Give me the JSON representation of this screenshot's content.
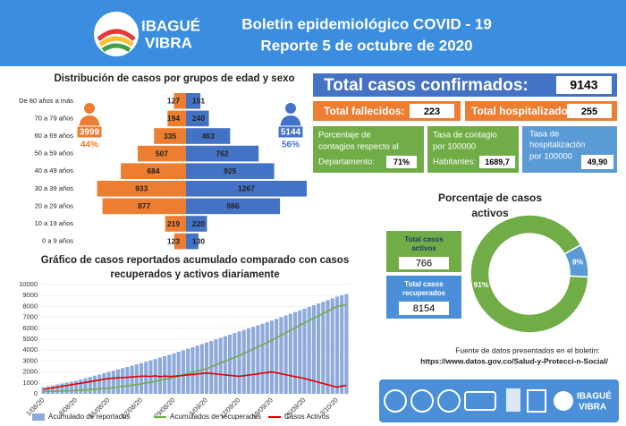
{
  "header": {
    "logo": [
      "IBAGUÉ",
      "VIBRA"
    ],
    "title": "Boletín epidemiológico COVID - 19",
    "subtitle": "Reporte 5 de octubre de 2020"
  },
  "kpis": {
    "confirmed": {
      "label": "Total casos confirmados:",
      "value": 9143
    },
    "deaths": {
      "label": "Total fallecidos:",
      "value": 223
    },
    "hospitalized": {
      "label": "Total hospitalizados:",
      "value": 255
    },
    "department_share": {
      "label": [
        "Porcentaje de",
        "contagios respecto al",
        "Departamento:"
      ],
      "value": "71%"
    },
    "infection_rate": {
      "label": [
        "Tasa de contagio",
        "por 100000",
        "Habitantes:"
      ],
      "value": "1689,7"
    },
    "hospitalization_rate": {
      "label": [
        "Tasa de",
        "hospitalización",
        "por 100000"
      ],
      "value": "49,90"
    },
    "active": {
      "label": [
        "Total casos",
        "activos"
      ],
      "value": 766
    },
    "recovered": {
      "label": [
        "Total casos",
        "recuperados"
      ],
      "value": 8154
    }
  },
  "source": {
    "text": "Fuente de datos presentados en el boletín:",
    "url": "https://www.datos.gov.co/Salud-y-Protecci-n-Social/"
  },
  "chart_data": [
    {
      "type": "pyramid",
      "title": "Distribución de casos por grupos de edad y sexo",
      "categories": [
        "De 80 años a más",
        "70 a 79 años",
        "60 a 69 años",
        "50 a 59 años",
        "40 a 49 años",
        "30 a 39 años",
        "20 a 29 años",
        "10 a 19 años",
        "0 a 9 años"
      ],
      "series": [
        {
          "color": "#ed7d31",
          "values": [
            127,
            194,
            335,
            507,
            684,
            933,
            877,
            219,
            123
          ],
          "total": 3999,
          "share": "44%"
        },
        {
          "color": "#4472c4",
          "values": [
            151,
            240,
            463,
            762,
            925,
            1267,
            986,
            220,
            130
          ],
          "total": 5144,
          "share": "56%"
        }
      ]
    },
    {
      "type": "combo",
      "title": [
        "Gráfico de casos reportados acumulado comparado con casos",
        "recuperados y activos diariamente"
      ],
      "categories": [
        "1/08/20",
        null,
        null,
        null,
        null,
        null,
        null,
        "8/08/20",
        null,
        null,
        null,
        null,
        null,
        null,
        "15/08/20",
        null,
        null,
        null,
        null,
        null,
        null,
        "22/08/20",
        null,
        null,
        null,
        null,
        null,
        null,
        "29/08/20",
        null,
        null,
        null,
        null,
        null,
        null,
        "5/09/20",
        null,
        null,
        null,
        null,
        null,
        null,
        "12/09/20",
        null,
        null,
        null,
        null,
        null,
        null,
        "19/09/20",
        null,
        null,
        null,
        null,
        null,
        null,
        "26/09/20",
        null,
        null,
        null,
        null,
        null,
        null,
        "3/10/20",
        null,
        null
      ],
      "ylim": [
        0,
        10000
      ],
      "yticks": [
        0,
        1000,
        2000,
        3000,
        4000,
        5000,
        6000,
        7000,
        8000,
        9000,
        10000
      ],
      "grid": true,
      "series": [
        {
          "name": "Acumulado de reportados",
          "type": "bar",
          "color": "#8eaadb",
          "values": [
            600,
            686,
            771,
            857,
            943,
            1029,
            1114,
            1200,
            1314,
            1429,
            1543,
            1657,
            1771,
            1886,
            2000,
            2114,
            2229,
            2343,
            2457,
            2571,
            2686,
            2800,
            2929,
            3057,
            3186,
            3314,
            3443,
            3571,
            3700,
            3843,
            3986,
            4129,
            4271,
            4414,
            4557,
            4700,
            4843,
            4986,
            5129,
            5271,
            5414,
            5557,
            5700,
            5843,
            5986,
            6129,
            6271,
            6414,
            6557,
            6700,
            6857,
            7014,
            7171,
            7329,
            7486,
            7643,
            7800,
            7957,
            8114,
            8271,
            8429,
            8586,
            8743,
            8900,
            9020,
            9143
          ]
        },
        {
          "name": "Acumulados de recuperados",
          "type": "line",
          "color": "#70ad47",
          "values": [
            200,
            214,
            229,
            243,
            257,
            271,
            286,
            300,
            329,
            357,
            386,
            414,
            443,
            471,
            500,
            557,
            614,
            671,
            729,
            786,
            843,
            900,
            986,
            1071,
            1157,
            1243,
            1329,
            1414,
            1500,
            1614,
            1729,
            1843,
            1957,
            2071,
            2186,
            2300,
            2471,
            2643,
            2814,
            2986,
            3157,
            3329,
            3500,
            3700,
            3900,
            4100,
            4300,
            4500,
            4700,
            4900,
            5129,
            5357,
            5586,
            5814,
            6043,
            6271,
            6500,
            6714,
            6929,
            7143,
            7357,
            7571,
            7786,
            8000,
            8080,
            8154
          ]
        },
        {
          "name": "Casos Activos",
          "type": "line",
          "color": "#e00000",
          "values": [
            400,
            471,
            543,
            614,
            686,
            757,
            829,
            900,
            971,
            1043,
            1114,
            1186,
            1257,
            1329,
            1400,
            1429,
            1457,
            1486,
            1514,
            1543,
            1571,
            1600,
            1620,
            1580,
            1640,
            1560,
            1620,
            1580,
            1600,
            1643,
            1686,
            1729,
            1771,
            1814,
            1857,
            1900,
            1857,
            1814,
            1771,
            1729,
            1686,
            1643,
            1600,
            1657,
            1714,
            1771,
            1829,
            1886,
            1943,
            2000,
            1914,
            1829,
            1743,
            1657,
            1571,
            1486,
            1400,
            1286,
            1171,
            1057,
            943,
            829,
            714,
            600,
            700,
            766
          ]
        }
      ]
    },
    {
      "type": "donut",
      "title": [
        "Porcentaje de casos",
        "activos"
      ],
      "values": [
        91,
        9
      ],
      "value_labels": [
        "91%",
        "9%"
      ],
      "colors": [
        "#70ad47",
        "#5b9bd5"
      ]
    }
  ]
}
